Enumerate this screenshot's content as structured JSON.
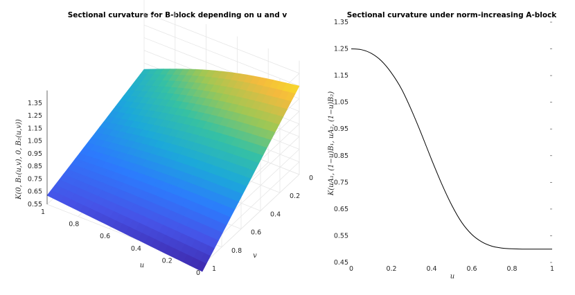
{
  "chart_data": [
    {
      "type": "surface",
      "title": "Sectional curvature for B-block depending on u and v",
      "xlabel": "u",
      "ylabel": "v",
      "zlabel": "K(0, B₁(u,v), 0, B₂(u,v))",
      "x_ticks": [
        "1",
        "0.8",
        "0.6",
        "0.4",
        "0.2",
        "0"
      ],
      "y_ticks": [
        "0",
        "0.2",
        "0.4",
        "0.6",
        "0.8",
        "1"
      ],
      "z_ticks": [
        "0.55",
        "0.65",
        "0.75",
        "0.85",
        "0.95",
        "1.05",
        "1.15",
        "1.25",
        "1.35"
      ],
      "xlim": [
        0,
        1
      ],
      "ylim": [
        0,
        1
      ],
      "zlim": [
        0.55,
        1.45
      ],
      "colormap": "parula",
      "grid": true,
      "corner_values": [
        {
          "u": 1,
          "v": 1,
          "z": 0.62
        },
        {
          "u": 0,
          "v": 1,
          "z": 0.5
        },
        {
          "u": 0,
          "v": 0,
          "z": 1.25
        },
        {
          "u": 1,
          "v": 0,
          "z": 0.9
        }
      ]
    },
    {
      "type": "line",
      "title": "Sectional curvature under norm-increasing A-block",
      "xlabel": "u",
      "ylabel": "K(uA₁, (1−u)B₁, uA₂, (1−u)B₂)",
      "x_ticks": [
        "0",
        "0.2",
        "0.4",
        "0.6",
        "0.8",
        "1"
      ],
      "y_ticks": [
        "0.45",
        "0.55",
        "0.65",
        "0.75",
        "0.85",
        "0.95",
        "1.05",
        "1.15",
        "1.25",
        "1.35"
      ],
      "xlim": [
        0,
        1
      ],
      "ylim": [
        0.45,
        1.35
      ],
      "grid": false,
      "series": [
        {
          "color": "#000000",
          "x": [
            0,
            0.05,
            0.1,
            0.15,
            0.2,
            0.25,
            0.3,
            0.35,
            0.4,
            0.45,
            0.5,
            0.55,
            0.6,
            0.65,
            0.7,
            0.75,
            0.8,
            0.85,
            0.9,
            0.95,
            1
          ],
          "y": [
            1.25,
            1.247,
            1.233,
            1.205,
            1.16,
            1.1,
            1.02,
            0.93,
            0.835,
            0.745,
            0.665,
            0.6,
            0.555,
            0.527,
            0.511,
            0.504,
            0.501,
            0.5,
            0.5,
            0.5,
            0.5
          ]
        }
      ]
    }
  ]
}
